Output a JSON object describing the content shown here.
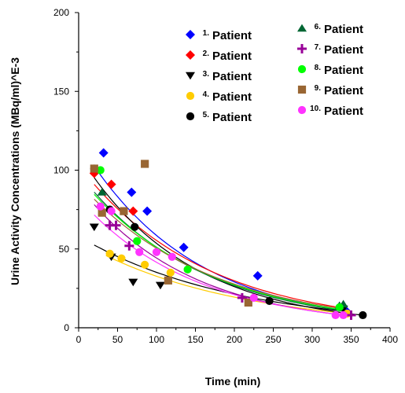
{
  "chart_data": {
    "type": "scatter",
    "title": "",
    "xlabel": "Time (min)",
    "ylabel": "Urine Activity Concentrations (MBq/ml)^E-3",
    "xlim": [
      0,
      400
    ],
    "ylim": [
      0,
      200
    ],
    "xticks": [
      0,
      50,
      100,
      150,
      200,
      250,
      300,
      350,
      400
    ],
    "yticks": [
      0,
      50,
      100,
      150,
      200
    ],
    "grid": false,
    "legend_placement": "top-right",
    "series": [
      {
        "num": "1.",
        "name": "Patient",
        "marker": "diamond",
        "color": "#0000ff",
        "x": [
          32,
          68,
          88,
          135,
          230,
          345
        ],
        "y": [
          111,
          86,
          74,
          51,
          33,
          10
        ],
        "fit": {
          "a": 118,
          "k": 0.007,
          "x0": 20,
          "x1": 350
        }
      },
      {
        "num": "2.",
        "name": "Patient",
        "marker": "diamond",
        "color": "#ff0000",
        "x": [
          20,
          42,
          70
        ],
        "y": [
          98,
          91,
          74
        ],
        "fit": {
          "a": 103,
          "k": 0.0062,
          "x0": 20,
          "x1": 340
        }
      },
      {
        "num": "3.",
        "name": "Patient",
        "marker": "triangle-down",
        "color": "#000000",
        "x": [
          20,
          42,
          70,
          105,
          340
        ],
        "y": [
          64,
          45,
          29,
          27,
          12
        ],
        "fit": {
          "a": 58,
          "k": 0.005,
          "x0": 20,
          "x1": 340
        }
      },
      {
        "num": "4.",
        "name": "Patient",
        "marker": "circle",
        "color": "#ffcc00",
        "x": [
          40,
          55,
          85,
          118,
          345
        ],
        "y": [
          47,
          44,
          40,
          35,
          9
        ],
        "fit": {
          "a": 55,
          "k": 0.0052,
          "x0": 35,
          "x1": 345
        }
      },
      {
        "num": "5.",
        "name": "Patient",
        "marker": "circle",
        "color": "#000000",
        "x": [
          20,
          40,
          72,
          245,
          365
        ],
        "y": [
          101,
          75,
          64,
          17,
          8
        ],
        "fit": {
          "a": 110,
          "k": 0.0072,
          "x0": 20,
          "x1": 365
        }
      },
      {
        "num": "6.",
        "name": "Patient",
        "marker": "triangle-up",
        "color": "#006633",
        "x": [
          30,
          335,
          340
        ],
        "y": [
          86,
          14,
          15
        ],
        "fit": {
          "a": 98,
          "k": 0.0065,
          "x0": 20,
          "x1": 345
        }
      },
      {
        "num": "7.",
        "name": "Patient",
        "marker": "plus",
        "color": "#990099",
        "x": [
          40,
          48,
          65,
          210,
          350
        ],
        "y": [
          65,
          65,
          52,
          19,
          8
        ],
        "fit": {
          "a": 90,
          "k": 0.0071,
          "x0": 20,
          "x1": 350
        }
      },
      {
        "num": "8.",
        "name": "Patient",
        "marker": "circle",
        "color": "#00ff00",
        "x": [
          28,
          75,
          140,
          335
        ],
        "y": [
          100,
          55,
          37,
          13
        ],
        "fit": {
          "a": 96,
          "k": 0.0063,
          "x0": 20,
          "x1": 340
        }
      },
      {
        "num": "9.",
        "name": "Patient",
        "marker": "square",
        "color": "#996633",
        "x": [
          20,
          30,
          58,
          85,
          115,
          218
        ],
        "y": [
          101,
          73,
          74,
          104,
          30,
          16
        ],
        "fit": {
          "a": 92,
          "k": 0.006,
          "x0": 20,
          "x1": 330
        }
      },
      {
        "num": "10.",
        "name": "Patient",
        "marker": "circle",
        "color": "#ff33ff",
        "x": [
          28,
          42,
          78,
          100,
          120,
          225,
          330,
          340
        ],
        "y": [
          77,
          74,
          48,
          48,
          45,
          19,
          8,
          8
        ],
        "fit": {
          "a": 82,
          "k": 0.0068,
          "x0": 20,
          "x1": 345
        }
      }
    ]
  }
}
